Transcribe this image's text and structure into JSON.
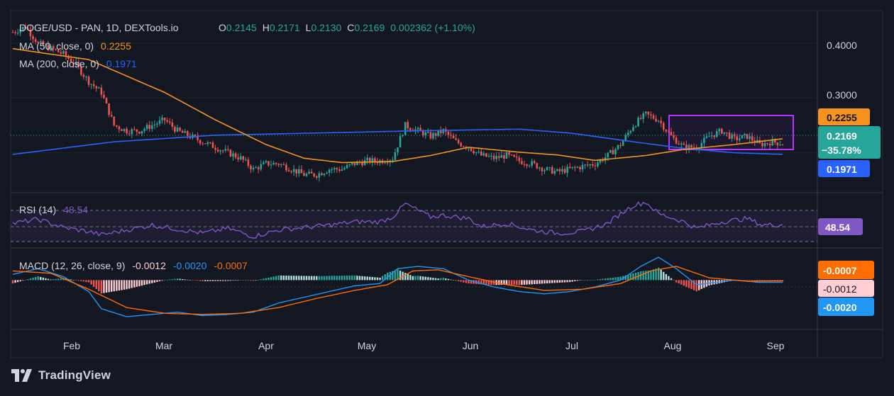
{
  "header": {
    "symbol": "DOGE/USD - PAN, 1D, DEXTools.io",
    "ohlc": [
      {
        "k": "O",
        "v": "0.2145"
      },
      {
        "k": "H",
        "v": "0.2171"
      },
      {
        "k": "L",
        "v": "0.2130"
      },
      {
        "k": "C",
        "v": "0.2169"
      }
    ],
    "change": "0.002362 (+1.10%)"
  },
  "indicators": {
    "ma50": {
      "label": "MA (50, close, 0)",
      "value": "0.2255",
      "color": "#f5931e"
    },
    "ma200": {
      "label": "MA (200, close, 0)",
      "value": "0.1971",
      "color": "#2962ff"
    },
    "rsi": {
      "label": "RSI (14)",
      "value": "48.54",
      "color": "#7e57c2"
    },
    "macd": {
      "label": "MACD (12, 26, close, 9)",
      "hist": "-0.0012",
      "macd": "-0.0020",
      "signal": "-0.0007"
    }
  },
  "price_scale": {
    "ticks": [
      "0.4000",
      "0.3000"
    ],
    "badges": [
      {
        "name": "ma50-badge",
        "text": "0.2255",
        "color": "#f5931e"
      },
      {
        "name": "price-badge",
        "text": "0.2169",
        "sub": "−35.78%",
        "color": "#26a69a"
      },
      {
        "name": "ma200-badge",
        "text": "0.1971",
        "color": "#2962ff"
      }
    ]
  },
  "rsi_scale": {
    "badge": "48.54"
  },
  "macd_scale": {
    "badges": [
      "-0.0007",
      "-0.0012",
      "-0.0020"
    ]
  },
  "time_axis": [
    "Feb",
    "Mar",
    "Apr",
    "May",
    "Jun",
    "Jul",
    "Aug",
    "Sep"
  ],
  "brand": "TradingView",
  "colors": {
    "background": "#131722",
    "up": "#26a69a",
    "down": "#ef5350",
    "highlight_box": "#b534ff"
  },
  "chart_data": [
    {
      "type": "candlestick",
      "title": "DOGE/USD - PAN, 1D, DEXTools.io",
      "x_range": [
        "Jan",
        "Sep"
      ],
      "ylim": [
        0.14,
        0.44
      ],
      "price_path": [
        [
          0,
          0.42
        ],
        [
          5,
          0.43
        ],
        [
          10,
          0.4
        ],
        [
          15,
          0.39
        ],
        [
          20,
          0.38
        ],
        [
          25,
          0.36
        ],
        [
          30,
          0.33
        ],
        [
          35,
          0.31
        ],
        [
          40,
          0.25
        ],
        [
          45,
          0.24
        ],
        [
          50,
          0.24
        ],
        [
          55,
          0.25
        ],
        [
          60,
          0.26
        ],
        [
          65,
          0.24
        ],
        [
          70,
          0.23
        ],
        [
          75,
          0.22
        ],
        [
          80,
          0.21
        ],
        [
          85,
          0.2
        ],
        [
          90,
          0.19
        ],
        [
          95,
          0.17
        ],
        [
          100,
          0.18
        ],
        [
          105,
          0.18
        ],
        [
          110,
          0.17
        ],
        [
          115,
          0.16
        ],
        [
          120,
          0.16
        ],
        [
          125,
          0.17
        ],
        [
          130,
          0.17
        ],
        [
          135,
          0.18
        ],
        [
          140,
          0.185
        ],
        [
          145,
          0.185
        ],
        [
          150,
          0.19
        ],
        [
          155,
          0.25
        ],
        [
          160,
          0.24
        ],
        [
          165,
          0.23
        ],
        [
          170,
          0.24
        ],
        [
          175,
          0.22
        ],
        [
          180,
          0.21
        ],
        [
          185,
          0.195
        ],
        [
          190,
          0.19
        ],
        [
          195,
          0.195
        ],
        [
          200,
          0.185
        ],
        [
          205,
          0.18
        ],
        [
          210,
          0.17
        ],
        [
          215,
          0.165
        ],
        [
          220,
          0.17
        ],
        [
          225,
          0.175
        ],
        [
          230,
          0.18
        ],
        [
          235,
          0.195
        ],
        [
          240,
          0.215
        ],
        [
          245,
          0.25
        ],
        [
          250,
          0.27
        ],
        [
          255,
          0.26
        ],
        [
          260,
          0.23
        ],
        [
          265,
          0.21
        ],
        [
          270,
          0.21
        ],
        [
          275,
          0.23
        ],
        [
          280,
          0.24
        ],
        [
          285,
          0.225
        ],
        [
          290,
          0.23
        ],
        [
          295,
          0.215
        ],
        [
          300,
          0.22
        ],
        [
          304,
          0.2169
        ]
      ],
      "series": [
        {
          "name": "MA (50, close, 0)",
          "last": 0.2255
        },
        {
          "name": "MA (200, close, 0)",
          "last": 0.1971
        }
      ],
      "ma50_path": [
        [
          0,
          0.39
        ],
        [
          30,
          0.37
        ],
        [
          60,
          0.31
        ],
        [
          80,
          0.26
        ],
        [
          100,
          0.215
        ],
        [
          115,
          0.19
        ],
        [
          130,
          0.182
        ],
        [
          150,
          0.184
        ],
        [
          165,
          0.195
        ],
        [
          180,
          0.21
        ],
        [
          200,
          0.201
        ],
        [
          215,
          0.196
        ],
        [
          230,
          0.186
        ],
        [
          250,
          0.195
        ],
        [
          265,
          0.206
        ],
        [
          285,
          0.215
        ],
        [
          304,
          0.2255
        ]
      ],
      "ma200_path": [
        [
          0,
          0.197
        ],
        [
          40,
          0.22
        ],
        [
          80,
          0.232
        ],
        [
          120,
          0.236
        ],
        [
          160,
          0.24
        ],
        [
          200,
          0.243
        ],
        [
          220,
          0.236
        ],
        [
          245,
          0.22
        ],
        [
          265,
          0.208
        ],
        [
          285,
          0.2
        ],
        [
          304,
          0.1971
        ]
      ]
    },
    {
      "type": "line",
      "title": "RSI (14)",
      "ylim": [
        20,
        85
      ],
      "levels": [
        70,
        50,
        30
      ],
      "last": 48.54,
      "rsi_path": [
        [
          0,
          50
        ],
        [
          10,
          55
        ],
        [
          20,
          45
        ],
        [
          30,
          40
        ],
        [
          35,
          36
        ],
        [
          45,
          42
        ],
        [
          55,
          48
        ],
        [
          65,
          43
        ],
        [
          75,
          38
        ],
        [
          85,
          44
        ],
        [
          95,
          34
        ],
        [
          105,
          42
        ],
        [
          115,
          45
        ],
        [
          125,
          48
        ],
        [
          135,
          52
        ],
        [
          145,
          52
        ],
        [
          150,
          58
        ],
        [
          155,
          74
        ],
        [
          160,
          66
        ],
        [
          165,
          58
        ],
        [
          170,
          60
        ],
        [
          180,
          56
        ],
        [
          185,
          46
        ],
        [
          195,
          50
        ],
        [
          205,
          42
        ],
        [
          215,
          38
        ],
        [
          225,
          40
        ],
        [
          235,
          50
        ],
        [
          240,
          62
        ],
        [
          245,
          72
        ],
        [
          250,
          76
        ],
        [
          255,
          62
        ],
        [
          265,
          52
        ],
        [
          270,
          44
        ],
        [
          280,
          52
        ],
        [
          290,
          56
        ],
        [
          296,
          48
        ],
        [
          304,
          48.54
        ]
      ]
    },
    {
      "type": "bar+line",
      "title": "MACD (12, 26, close, 9)",
      "ylim": [
        -0.04,
        0.025
      ],
      "last": {
        "histogram": -0.0012,
        "macd": -0.002,
        "signal": -0.0007
      },
      "macd_path": [
        [
          0,
          0.005
        ],
        [
          10,
          0.01
        ],
        [
          20,
          0.003
        ],
        [
          30,
          -0.01
        ],
        [
          35,
          -0.025
        ],
        [
          45,
          -0.032
        ],
        [
          55,
          -0.03
        ],
        [
          65,
          -0.028
        ],
        [
          75,
          -0.031
        ],
        [
          85,
          -0.03
        ],
        [
          95,
          -0.028
        ],
        [
          105,
          -0.02
        ],
        [
          115,
          -0.015
        ],
        [
          125,
          -0.01
        ],
        [
          135,
          -0.005
        ],
        [
          145,
          -0.003
        ],
        [
          152,
          0.01
        ],
        [
          160,
          0.012
        ],
        [
          170,
          0.01
        ],
        [
          180,
          0.0
        ],
        [
          190,
          -0.006
        ],
        [
          200,
          -0.01
        ],
        [
          210,
          -0.012
        ],
        [
          220,
          -0.01
        ],
        [
          230,
          -0.006
        ],
        [
          240,
          0.0
        ],
        [
          248,
          0.012
        ],
        [
          255,
          0.02
        ],
        [
          262,
          0.01
        ],
        [
          270,
          -0.004
        ],
        [
          285,
          0.0
        ],
        [
          295,
          -0.002
        ],
        [
          304,
          -0.002
        ]
      ],
      "signal_path": [
        [
          0,
          0.008
        ],
        [
          15,
          0.006
        ],
        [
          30,
          -0.008
        ],
        [
          45,
          -0.024
        ],
        [
          60,
          -0.029
        ],
        [
          75,
          -0.03
        ],
        [
          90,
          -0.029
        ],
        [
          105,
          -0.024
        ],
        [
          120,
          -0.016
        ],
        [
          135,
          -0.009
        ],
        [
          148,
          -0.004
        ],
        [
          158,
          0.008
        ],
        [
          168,
          0.009
        ],
        [
          180,
          0.003
        ],
        [
          195,
          -0.004
        ],
        [
          210,
          -0.009
        ],
        [
          225,
          -0.008
        ],
        [
          240,
          -0.003
        ],
        [
          252,
          0.008
        ],
        [
          262,
          0.012
        ],
        [
          275,
          0.002
        ],
        [
          290,
          -0.001
        ],
        [
          304,
          -0.0007
        ]
      ]
    }
  ]
}
